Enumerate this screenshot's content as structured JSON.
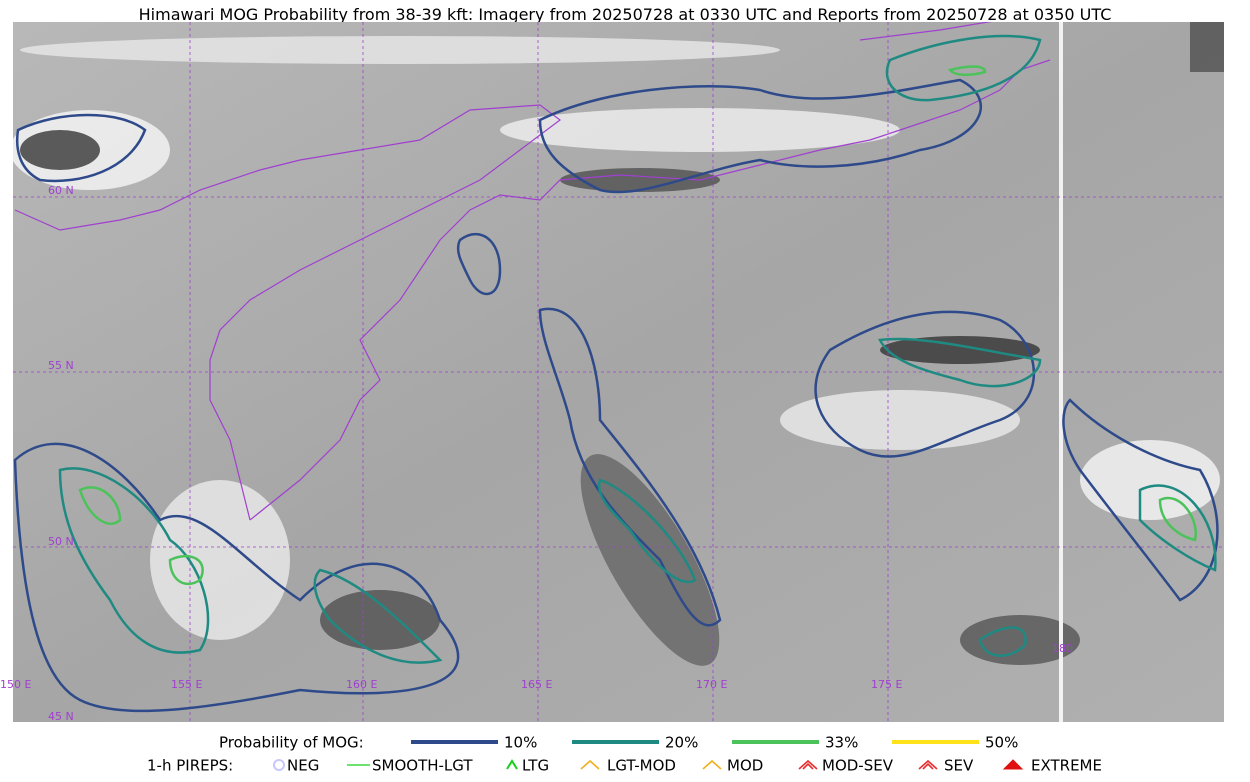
{
  "map": {
    "title": "Himawari MOG Probability from 38-39 kft: Imagery from 20250728 at 0330 UTC and Reports from 20250728 at 0350 UTC",
    "lat_labels": [
      "60 N",
      "55 N",
      "50 N",
      "45 N"
    ],
    "lon_labels": [
      "150 E",
      "155 E",
      "160 E",
      "165 E",
      "170 E",
      "175 E",
      "180"
    ]
  },
  "legend": {
    "probability": {
      "title": "Probability of MOG:",
      "items": [
        {
          "label": "10%",
          "color": "#2e4a8a"
        },
        {
          "label": "20%",
          "color": "#1f8a82"
        },
        {
          "label": "33%",
          "color": "#4cc35a"
        },
        {
          "label": "50%",
          "color": "#ffe21a"
        }
      ]
    },
    "pireps": {
      "title": "1-h PIREPS:",
      "items": [
        {
          "label": "NEG",
          "color": "#c8c8ff"
        },
        {
          "label": "SMOOTH-LGT",
          "color": "#3fd93f"
        },
        {
          "label": "LTG",
          "color": "#17d117"
        },
        {
          "label": "LGT-MOD",
          "color": "#f0b020"
        },
        {
          "label": "MOD",
          "color": "#f0b020"
        },
        {
          "label": "MOD-SEV",
          "color": "#e83030"
        },
        {
          "label": "SEV",
          "color": "#e83030"
        },
        {
          "label": "EXTREME",
          "color": "#e01010"
        }
      ]
    }
  }
}
